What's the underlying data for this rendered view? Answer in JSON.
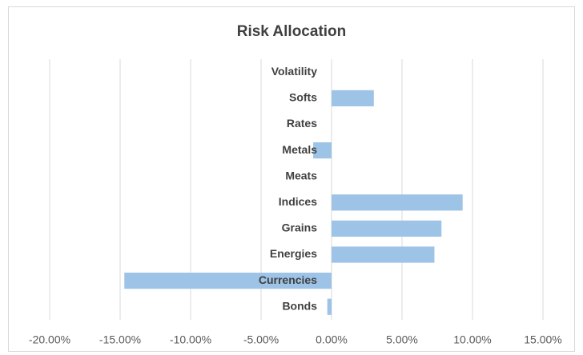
{
  "chart_data": {
    "type": "bar",
    "orientation": "horizontal",
    "title": "Risk Allocation",
    "categories": [
      "Bonds",
      "Currencies",
      "Energies",
      "Grains",
      "Indices",
      "Meats",
      "Metals",
      "Rates",
      "Softs",
      "Volatility"
    ],
    "values": [
      -0.3,
      -14.7,
      7.3,
      7.8,
      9.3,
      0,
      -1.3,
      0,
      3.0,
      0
    ],
    "color": "#9dc3e6",
    "xlim": [
      -20,
      15
    ],
    "xticks": [
      {
        "value": -20,
        "label": "-20.00%"
      },
      {
        "value": -15,
        "label": "-15.00%"
      },
      {
        "value": -10,
        "label": "-10.00%"
      },
      {
        "value": -5,
        "label": "-5.00%"
      },
      {
        "value": 0,
        "label": "0.00%"
      },
      {
        "value": 5,
        "label": "5.00%"
      },
      {
        "value": 10,
        "label": "10.00%"
      },
      {
        "value": 15,
        "label": "15.00%"
      }
    ],
    "grid": true
  }
}
